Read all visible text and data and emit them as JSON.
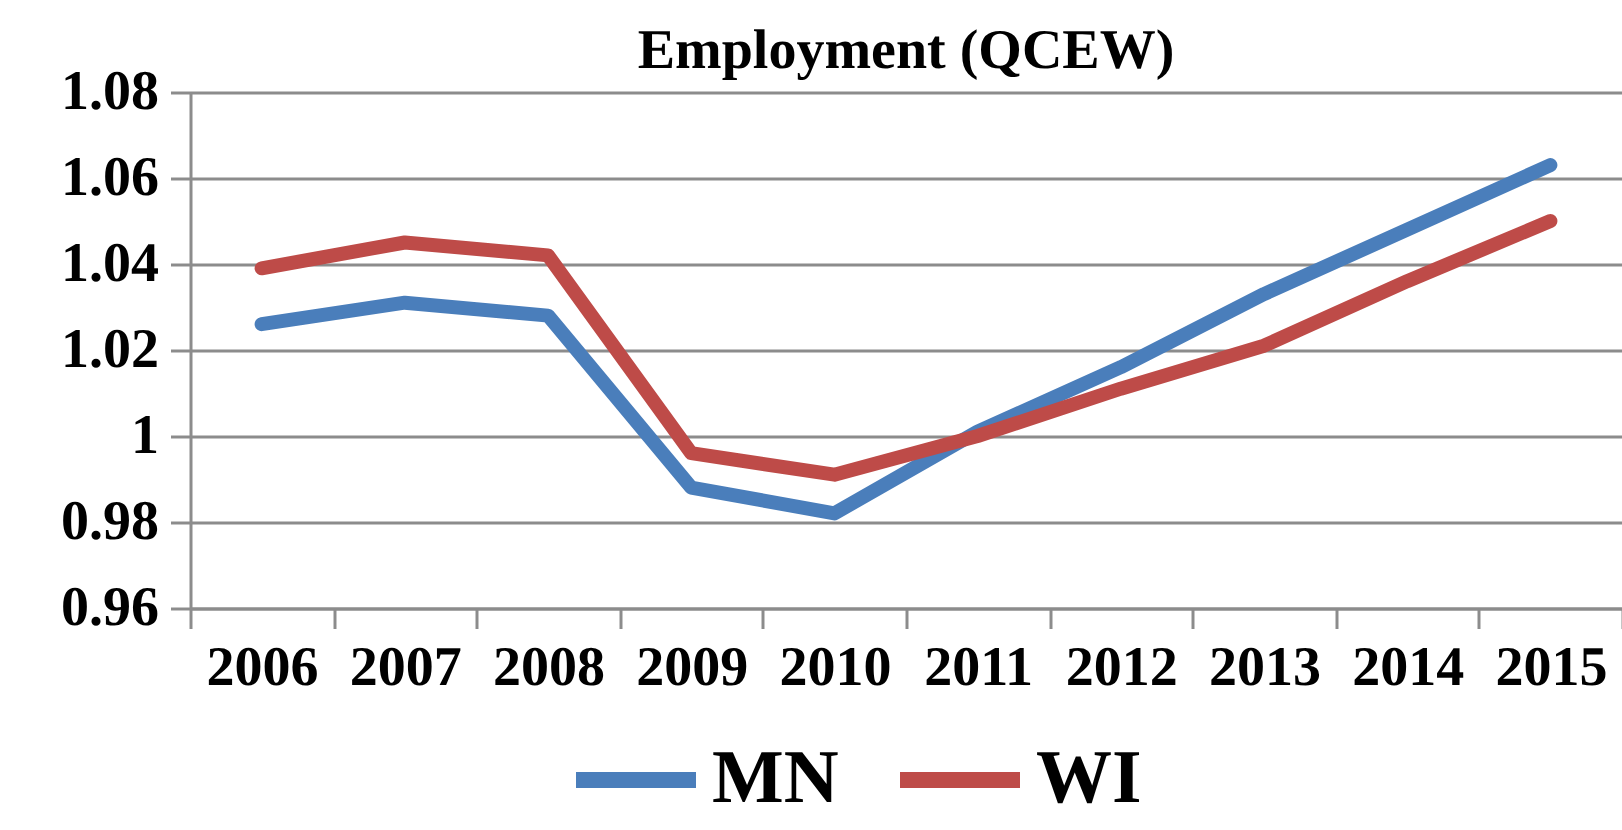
{
  "chart_data": {
    "type": "line",
    "title": "Employment (QCEW)",
    "categories": [
      "2006",
      "2007",
      "2008",
      "2009",
      "2010",
      "2011",
      "2012",
      "2013",
      "2014",
      "2015"
    ],
    "series": [
      {
        "name": "MN",
        "color": "#4a7ebb",
        "values": [
          1.026,
          1.031,
          1.028,
          0.988,
          0.982,
          1.001,
          1.016,
          1.033,
          1.048,
          1.063
        ]
      },
      {
        "name": "WI",
        "color": "#be4b48",
        "values": [
          1.039,
          1.045,
          1.042,
          0.996,
          0.991,
          1.0,
          1.011,
          1.021,
          1.036,
          1.05
        ]
      }
    ],
    "ylim": [
      0.96,
      1.08
    ],
    "yticks": [
      0.96,
      0.98,
      1,
      1.02,
      1.04,
      1.06,
      1.08
    ],
    "grid": "y",
    "legend": "bottom",
    "line_style": "solid"
  }
}
